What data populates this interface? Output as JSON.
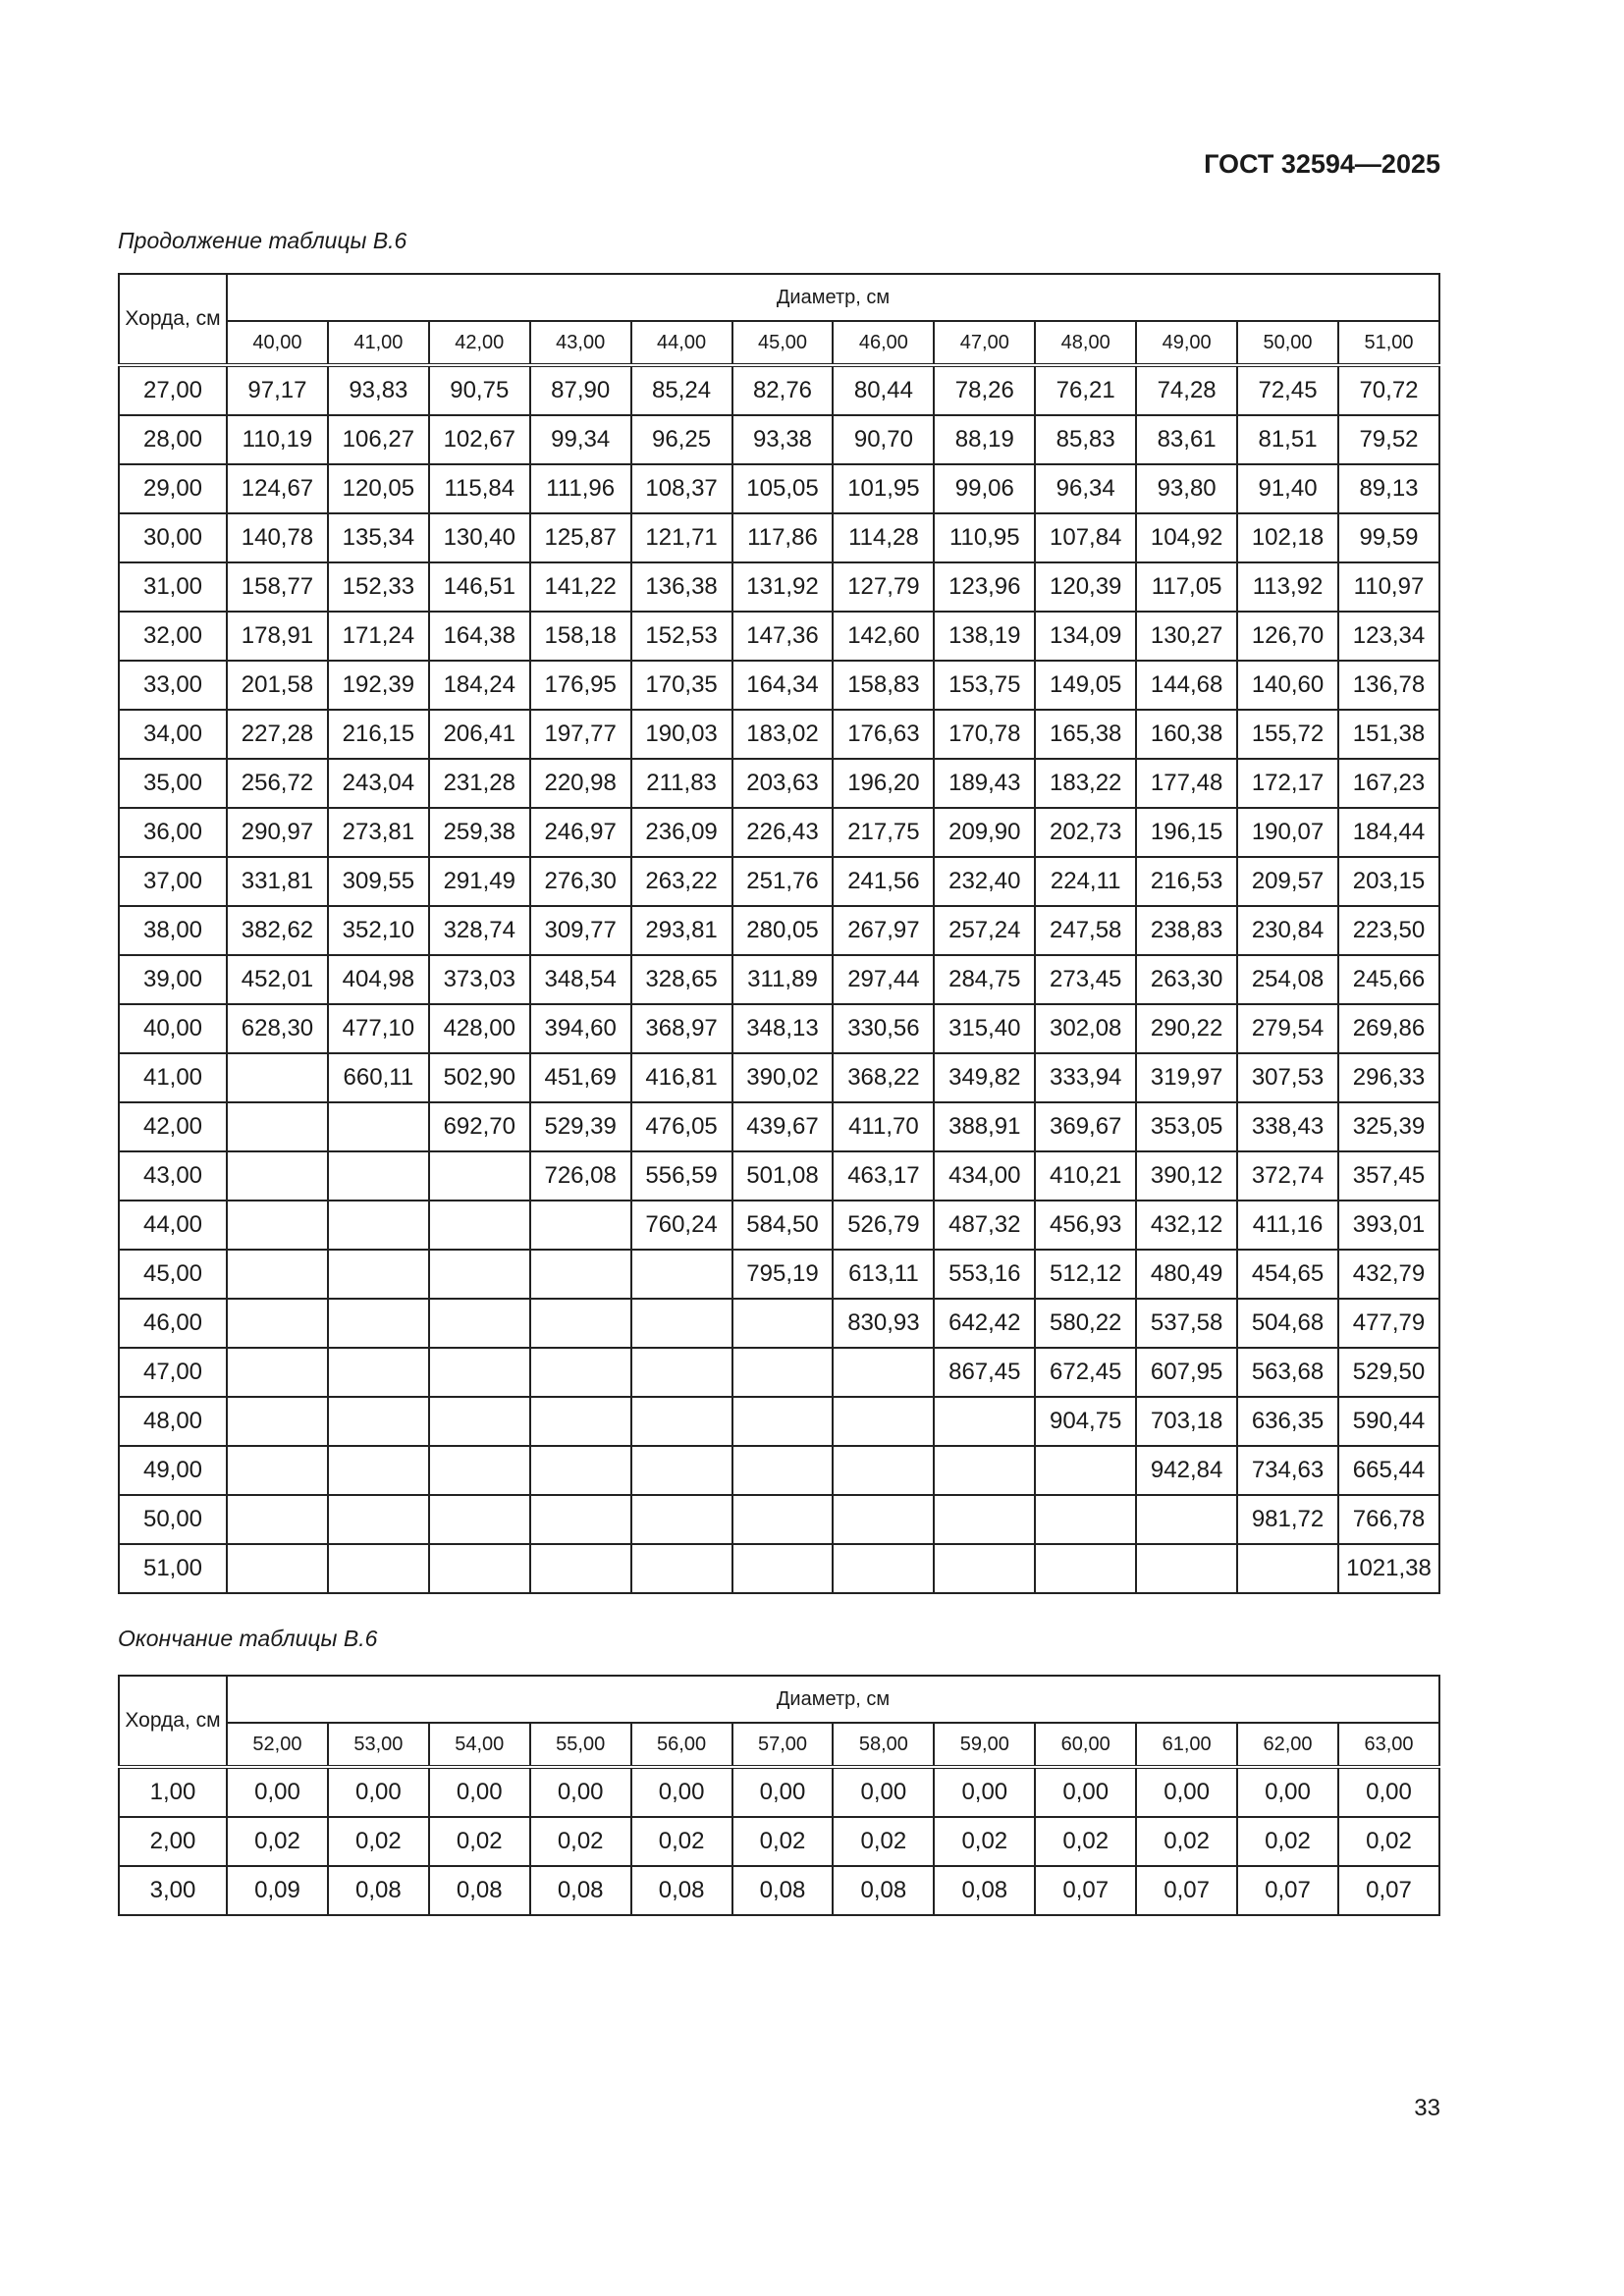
{
  "header": {
    "document_code": "ГОСТ 32594—2025"
  },
  "table1": {
    "caption": "Продолжение таблицы В.6",
    "row_header": "Хорда, см",
    "group_header": "Диаметр, см",
    "columns": [
      "40,00",
      "41,00",
      "42,00",
      "43,00",
      "44,00",
      "45,00",
      "46,00",
      "47,00",
      "48,00",
      "49,00",
      "50,00",
      "51,00"
    ],
    "rows": [
      [
        "27,00",
        "97,17",
        "93,83",
        "90,75",
        "87,90",
        "85,24",
        "82,76",
        "80,44",
        "78,26",
        "76,21",
        "74,28",
        "72,45",
        "70,72"
      ],
      [
        "28,00",
        "110,19",
        "106,27",
        "102,67",
        "99,34",
        "96,25",
        "93,38",
        "90,70",
        "88,19",
        "85,83",
        "83,61",
        "81,51",
        "79,52"
      ],
      [
        "29,00",
        "124,67",
        "120,05",
        "115,84",
        "111,96",
        "108,37",
        "105,05",
        "101,95",
        "99,06",
        "96,34",
        "93,80",
        "91,40",
        "89,13"
      ],
      [
        "30,00",
        "140,78",
        "135,34",
        "130,40",
        "125,87",
        "121,71",
        "117,86",
        "114,28",
        "110,95",
        "107,84",
        "104,92",
        "102,18",
        "99,59"
      ],
      [
        "31,00",
        "158,77",
        "152,33",
        "146,51",
        "141,22",
        "136,38",
        "131,92",
        "127,79",
        "123,96",
        "120,39",
        "117,05",
        "113,92",
        "110,97"
      ],
      [
        "32,00",
        "178,91",
        "171,24",
        "164,38",
        "158,18",
        "152,53",
        "147,36",
        "142,60",
        "138,19",
        "134,09",
        "130,27",
        "126,70",
        "123,34"
      ],
      [
        "33,00",
        "201,58",
        "192,39",
        "184,24",
        "176,95",
        "170,35",
        "164,34",
        "158,83",
        "153,75",
        "149,05",
        "144,68",
        "140,60",
        "136,78"
      ],
      [
        "34,00",
        "227,28",
        "216,15",
        "206,41",
        "197,77",
        "190,03",
        "183,02",
        "176,63",
        "170,78",
        "165,38",
        "160,38",
        "155,72",
        "151,38"
      ],
      [
        "35,00",
        "256,72",
        "243,04",
        "231,28",
        "220,98",
        "211,83",
        "203,63",
        "196,20",
        "189,43",
        "183,22",
        "177,48",
        "172,17",
        "167,23"
      ],
      [
        "36,00",
        "290,97",
        "273,81",
        "259,38",
        "246,97",
        "236,09",
        "226,43",
        "217,75",
        "209,90",
        "202,73",
        "196,15",
        "190,07",
        "184,44"
      ],
      [
        "37,00",
        "331,81",
        "309,55",
        "291,49",
        "276,30",
        "263,22",
        "251,76",
        "241,56",
        "232,40",
        "224,11",
        "216,53",
        "209,57",
        "203,15"
      ],
      [
        "38,00",
        "382,62",
        "352,10",
        "328,74",
        "309,77",
        "293,81",
        "280,05",
        "267,97",
        "257,24",
        "247,58",
        "238,83",
        "230,84",
        "223,50"
      ],
      [
        "39,00",
        "452,01",
        "404,98",
        "373,03",
        "348,54",
        "328,65",
        "311,89",
        "297,44",
        "284,75",
        "273,45",
        "263,30",
        "254,08",
        "245,66"
      ],
      [
        "40,00",
        "628,30",
        "477,10",
        "428,00",
        "394,60",
        "368,97",
        "348,13",
        "330,56",
        "315,40",
        "302,08",
        "290,22",
        "279,54",
        "269,86"
      ],
      [
        "41,00",
        "",
        "660,11",
        "502,90",
        "451,69",
        "416,81",
        "390,02",
        "368,22",
        "349,82",
        "333,94",
        "319,97",
        "307,53",
        "296,33"
      ],
      [
        "42,00",
        "",
        "",
        "692,70",
        "529,39",
        "476,05",
        "439,67",
        "411,70",
        "388,91",
        "369,67",
        "353,05",
        "338,43",
        "325,39"
      ],
      [
        "43,00",
        "",
        "",
        "",
        "726,08",
        "556,59",
        "501,08",
        "463,17",
        "434,00",
        "410,21",
        "390,12",
        "372,74",
        "357,45"
      ],
      [
        "44,00",
        "",
        "",
        "",
        "",
        "760,24",
        "584,50",
        "526,79",
        "487,32",
        "456,93",
        "432,12",
        "411,16",
        "393,01"
      ],
      [
        "45,00",
        "",
        "",
        "",
        "",
        "",
        "795,19",
        "613,11",
        "553,16",
        "512,12",
        "480,49",
        "454,65",
        "432,79"
      ],
      [
        "46,00",
        "",
        "",
        "",
        "",
        "",
        "",
        "830,93",
        "642,42",
        "580,22",
        "537,58",
        "504,68",
        "477,79"
      ],
      [
        "47,00",
        "",
        "",
        "",
        "",
        "",
        "",
        "",
        "867,45",
        "672,45",
        "607,95",
        "563,68",
        "529,50"
      ],
      [
        "48,00",
        "",
        "",
        "",
        "",
        "",
        "",
        "",
        "",
        "904,75",
        "703,18",
        "636,35",
        "590,44"
      ],
      [
        "49,00",
        "",
        "",
        "",
        "",
        "",
        "",
        "",
        "",
        "",
        "942,84",
        "734,63",
        "665,44"
      ],
      [
        "50,00",
        "",
        "",
        "",
        "",
        "",
        "",
        "",
        "",
        "",
        "",
        "981,72",
        "766,78"
      ],
      [
        "51,00",
        "",
        "",
        "",
        "",
        "",
        "",
        "",
        "",
        "",
        "",
        "",
        "1021,38"
      ]
    ]
  },
  "table2": {
    "caption": "Окончание таблицы В.6",
    "row_header": "Хорда, см",
    "group_header": "Диаметр, см",
    "columns": [
      "52,00",
      "53,00",
      "54,00",
      "55,00",
      "56,00",
      "57,00",
      "58,00",
      "59,00",
      "60,00",
      "61,00",
      "62,00",
      "63,00"
    ],
    "rows": [
      [
        "1,00",
        "0,00",
        "0,00",
        "0,00",
        "0,00",
        "0,00",
        "0,00",
        "0,00",
        "0,00",
        "0,00",
        "0,00",
        "0,00",
        "0,00"
      ],
      [
        "2,00",
        "0,02",
        "0,02",
        "0,02",
        "0,02",
        "0,02",
        "0,02",
        "0,02",
        "0,02",
        "0,02",
        "0,02",
        "0,02",
        "0,02"
      ],
      [
        "3,00",
        "0,09",
        "0,08",
        "0,08",
        "0,08",
        "0,08",
        "0,08",
        "0,08",
        "0,08",
        "0,07",
        "0,07",
        "0,07",
        "0,07"
      ]
    ]
  },
  "footer": {
    "page_number": "33"
  }
}
